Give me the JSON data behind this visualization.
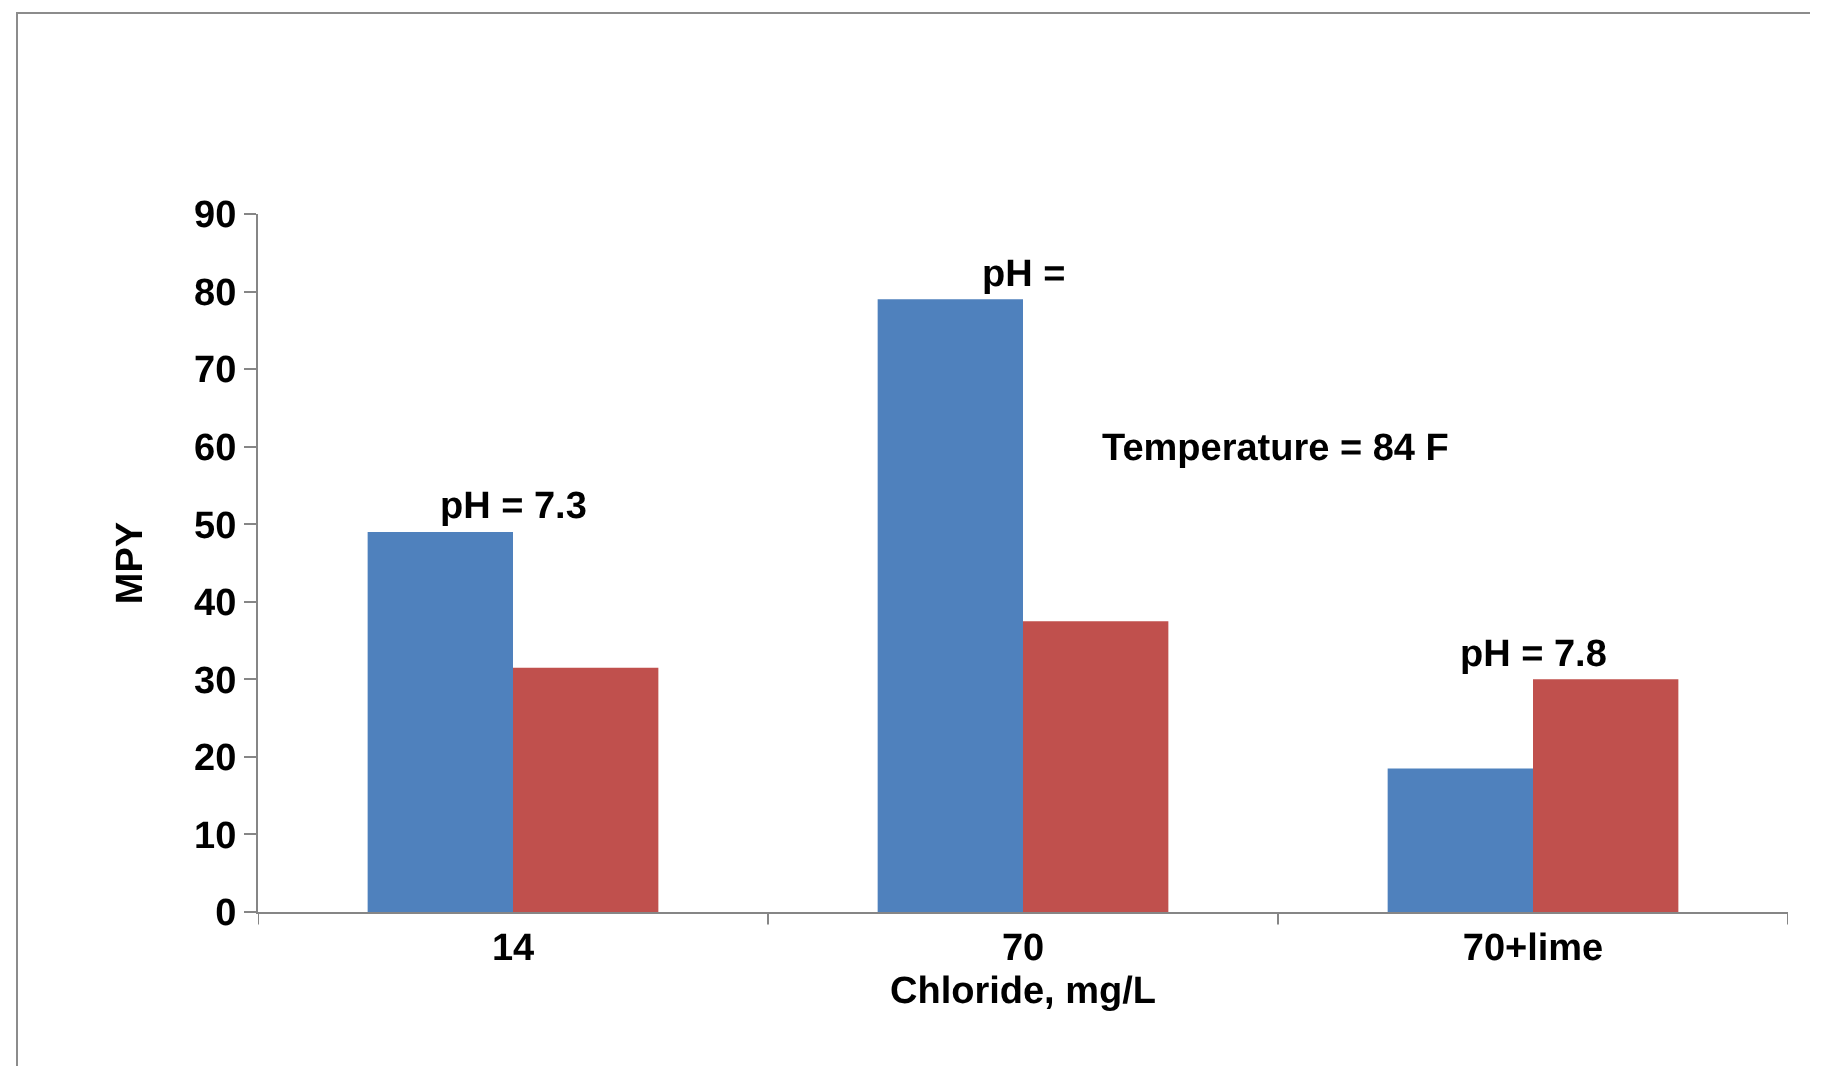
{
  "chart_data": {
    "type": "bar",
    "xlabel": "Chloride, mg/L",
    "ylabel": "MPY",
    "categories": [
      "14",
      "70",
      "70+lime"
    ],
    "series": [
      {
        "color": "#4f81bd",
        "values": [
          49,
          79,
          18.5
        ]
      },
      {
        "color": "#c0504d",
        "values": [
          31.5,
          37.5,
          30
        ]
      }
    ],
    "ylim": [
      0,
      90
    ],
    "yticks": [
      0,
      10,
      20,
      30,
      40,
      50,
      60,
      70,
      80,
      90
    ],
    "grid": false,
    "annotations": [
      {
        "text": "pH = 7.3",
        "x": "14",
        "y": 49
      },
      {
        "text": "pH =",
        "x": "70",
        "y": 79
      },
      "Temperature = 84 F",
      {
        "text": "pH = 7.8",
        "x": "70+lime",
        "y": 30
      }
    ]
  }
}
